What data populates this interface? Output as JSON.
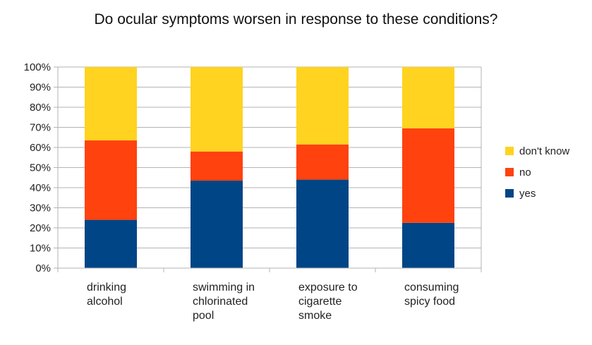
{
  "chart_data": {
    "type": "bar",
    "stacked": "percent",
    "title": "Do ocular symptoms worsen in response to these conditions?",
    "xlabel": "",
    "ylabel": "",
    "ylim": [
      0,
      100
    ],
    "y_ticks": [
      "0%",
      "10%",
      "20%",
      "30%",
      "40%",
      "50%",
      "60%",
      "70%",
      "80%",
      "90%",
      "100%"
    ],
    "grid": true,
    "categories": [
      [
        "drinking",
        "alcohol"
      ],
      [
        "swimming in",
        "chlorinated",
        "pool"
      ],
      [
        "exposure to",
        "cigarette",
        "smoke"
      ],
      [
        "consuming",
        "spicy food"
      ]
    ],
    "series": [
      {
        "name": "yes",
        "color": "#004586",
        "values": [
          24,
          43.5,
          44,
          22.5
        ]
      },
      {
        "name": "no",
        "color": "#ff420e",
        "values": [
          39.5,
          14.5,
          17.5,
          47
        ]
      },
      {
        "name": "don't know",
        "color": "#ffd320",
        "values": [
          36.5,
          42,
          38.5,
          30.5
        ]
      }
    ],
    "legend": {
      "position": "right",
      "order": [
        "don't know",
        "no",
        "yes"
      ]
    }
  }
}
